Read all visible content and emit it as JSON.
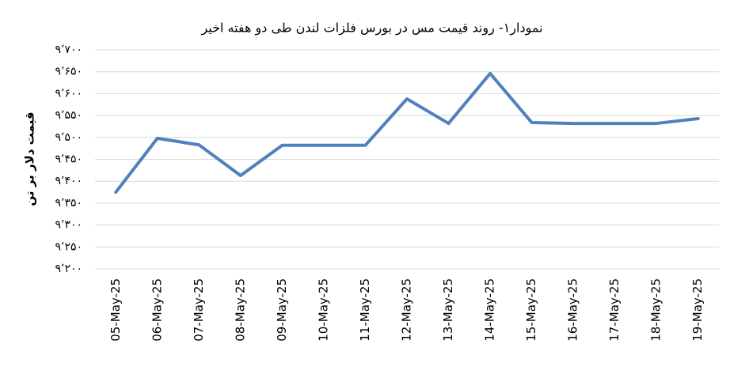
{
  "chart_data": {
    "type": "line",
    "title": "نمودار۱- روند قیمت مس در بورس فلزات لندن طی دو هفته اخیر",
    "y_label": "قیمت دلار بر تن",
    "categories": [
      "05-May-25",
      "06-May-25",
      "07-May-25",
      "08-May-25",
      "09-May-25",
      "10-May-25",
      "11-May-25",
      "12-May-25",
      "13-May-25",
      "14-May-25",
      "15-May-25",
      "16-May-25",
      "17-May-25",
      "18-May-25",
      "19-May-25"
    ],
    "values": [
      9375,
      9498,
      9483,
      9413,
      9482,
      9482,
      9482,
      9588,
      9532,
      9646,
      9534,
      9532,
      9532,
      9532,
      9543
    ],
    "color": "#4f81bd",
    "ylim": [
      9200,
      9700
    ],
    "yticks": [
      {
        "value": 9200,
        "label": "۹٬۲۰۰"
      },
      {
        "value": 9250,
        "label": "۹٬۲۵۰"
      },
      {
        "value": 9300,
        "label": "۹٬۳۰۰"
      },
      {
        "value": 9350,
        "label": "۹٬۳۵۰"
      },
      {
        "value": 9400,
        "label": "۹٬۴۰۰"
      },
      {
        "value": 9450,
        "label": "۹٬۴۵۰"
      },
      {
        "value": 9500,
        "label": "۹٬۵۰۰"
      },
      {
        "value": 9550,
        "label": "۹٬۵۵۰"
      },
      {
        "value": 9600,
        "label": "۹٬۶۰۰"
      },
      {
        "value": 9650,
        "label": "۹٬۶۵۰"
      },
      {
        "value": 9700,
        "label": "۹٬۷۰۰"
      }
    ],
    "grid": true
  }
}
